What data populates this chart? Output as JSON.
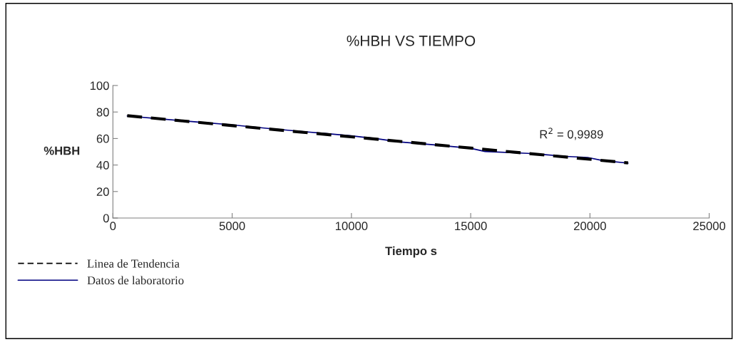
{
  "chart_data": {
    "type": "line",
    "title": "%HBH VS TIEMPO",
    "xlabel": "Tiempo s",
    "ylabel": "%HBH",
    "xlim": [
      0,
      25000
    ],
    "xticks": [
      0,
      5000,
      10000,
      15000,
      20000,
      25000
    ],
    "ylim": [
      0,
      100
    ],
    "yticks": [
      0,
      20,
      40,
      60,
      80,
      100
    ],
    "grid": false,
    "legend": "bottom left",
    "annotations": [
      "R$^{2}$ = 0,9989"
    ],
    "series": [
      {
        "name": "Linea de Tendencia",
        "color": "#000000",
        "line_style": "dashed",
        "x": [
          600,
          21600
        ],
        "values": [
          77.2,
          41.6
        ]
      },
      {
        "name": "Datos de laboratorio",
        "color": "#000080",
        "line_style": "solid",
        "x": [
          600,
          2000,
          3500,
          5000,
          6500,
          8000,
          9000,
          10000,
          11000,
          12000,
          13500,
          15000,
          15600,
          17400,
          19000,
          19900,
          20500,
          21600
        ],
        "values": [
          77,
          74.8,
          72.5,
          70.3,
          67.6,
          65.2,
          63.6,
          62,
          60,
          57.5,
          55.2,
          52.6,
          50.2,
          48.8,
          46.5,
          45.7,
          43.5,
          41.4
        ]
      }
    ]
  }
}
